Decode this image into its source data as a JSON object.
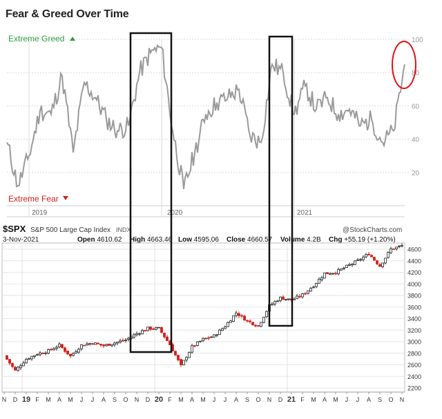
{
  "title": "Fear & Greed Over Time",
  "colors": {
    "greed": "#2e9e3e",
    "fear": "#d0201a",
    "fg_line": "#9a9a9a",
    "grid": "#d9d9d9",
    "up_candle": "#222222",
    "down_candle": "#d0201a",
    "box": "#111111",
    "circle": "#e01010"
  },
  "fear_greed": {
    "greed_label": "Extreme Greed",
    "greed_icon": "triangle-up-icon",
    "fear_label": "Extreme Fear",
    "fear_icon": "triangle-down-icon",
    "year_labels": [
      "2019",
      "2020",
      "2021"
    ]
  },
  "spx": {
    "symbol": "$SPX",
    "name": "S&P 500 Large Cap Index",
    "exchange": "INDX",
    "date": "3-Nov-2021",
    "watermark": "@StockCharts.com",
    "quote": [
      {
        "label": "Open",
        "value": "4610.62"
      },
      {
        "label": "High",
        "value": "4663.46"
      },
      {
        "label": "Low",
        "value": "4595.06"
      },
      {
        "label": "Close",
        "value": "4660.57"
      },
      {
        "label": "Volume",
        "value": "4.2B"
      },
      {
        "label": "Chg",
        "value": "+55.19 (+1.20%)"
      }
    ]
  },
  "month_labels": [
    "N",
    "D",
    "19",
    "F",
    "M",
    "A",
    "M",
    "J",
    "J",
    "A",
    "S",
    "O",
    "N",
    "D",
    "20",
    "F",
    "M",
    "A",
    "M",
    "J",
    "J",
    "A",
    "S",
    "O",
    "N",
    "D",
    "21",
    "F",
    "M",
    "A",
    "M",
    "J",
    "J",
    "A",
    "S",
    "O",
    "N"
  ],
  "chart_data": [
    {
      "type": "line",
      "name": "fear-greed-index",
      "ylim": [
        0,
        100
      ],
      "yticks": [
        20,
        40,
        60,
        80,
        100
      ],
      "grid": true,
      "x_range": [
        "2018-11",
        "2021-11"
      ],
      "x": [
        "2018-11",
        "2018-12",
        "2019-01",
        "2019-02",
        "2019-03",
        "2019-04",
        "2019-05",
        "2019-06",
        "2019-07",
        "2019-08",
        "2019-09",
        "2019-10",
        "2019-11",
        "2019-12",
        "2020-01",
        "2020-02",
        "2020-03",
        "2020-04",
        "2020-05",
        "2020-06",
        "2020-07",
        "2020-08",
        "2020-09",
        "2020-10",
        "2020-11",
        "2020-12",
        "2021-01",
        "2021-02",
        "2021-03",
        "2021-04",
        "2021-05",
        "2021-06",
        "2021-07",
        "2021-08",
        "2021-09",
        "2021-10",
        "2021-11"
      ],
      "values": [
        38,
        12,
        30,
        57,
        55,
        78,
        32,
        74,
        65,
        52,
        45,
        48,
        80,
        92,
        95,
        45,
        10,
        32,
        55,
        62,
        65,
        70,
        42,
        38,
        85,
        80,
        55,
        72,
        58,
        65,
        55,
        58,
        48,
        52,
        38,
        45,
        85
      ]
    },
    {
      "type": "candlestick",
      "name": "S&P 500 Large Cap Index",
      "ylim": [
        2200,
        4600
      ],
      "yticks": [
        2200,
        2400,
        2600,
        2800,
        3000,
        3200,
        3400,
        3600,
        3800,
        4000,
        4200,
        4400,
        4600
      ],
      "grid": true,
      "x_range": [
        "2018-11",
        "2021-11"
      ],
      "x": [
        "2018-11",
        "2018-12",
        "2019-01",
        "2019-02",
        "2019-03",
        "2019-04",
        "2019-05",
        "2019-06",
        "2019-07",
        "2019-08",
        "2019-09",
        "2019-10",
        "2019-11",
        "2019-12",
        "2020-01",
        "2020-02",
        "2020-03",
        "2020-04",
        "2020-05",
        "2020-06",
        "2020-07",
        "2020-08",
        "2020-09",
        "2020-10",
        "2020-11",
        "2020-12",
        "2021-01",
        "2021-02",
        "2021-03",
        "2021-04",
        "2021-05",
        "2021-06",
        "2021-07",
        "2021-08",
        "2021-09",
        "2021-10",
        "2021-11"
      ],
      "values": [
        2760,
        2500,
        2700,
        2790,
        2840,
        2940,
        2750,
        2940,
        2980,
        2930,
        2980,
        3030,
        3140,
        3230,
        3230,
        2950,
        2580,
        2910,
        3040,
        3100,
        3270,
        3500,
        3360,
        3270,
        3620,
        3760,
        3720,
        3810,
        3970,
        4180,
        4200,
        4300,
        4400,
        4520,
        4310,
        4600,
        4660
      ]
    }
  ]
}
